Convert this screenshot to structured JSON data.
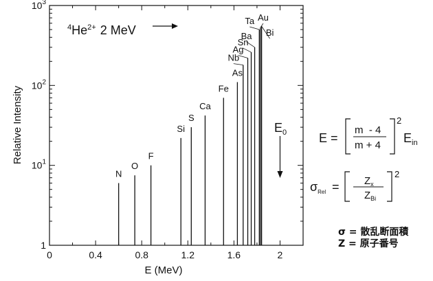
{
  "chart_data": {
    "type": "bar",
    "subtype": "log-y stick spectrum",
    "title_parts": {
      "mass": "4",
      "symbol": "He",
      "charge": "2+",
      "energy": "2 MeV"
    },
    "xlabel": "E (MeV)",
    "ylabel": "Relative Intensity",
    "xlim": [
      0,
      2.2
    ],
    "ylim": [
      1,
      1000
    ],
    "yscale": "log",
    "x_ticks": [
      0,
      0.4,
      0.8,
      1.2,
      1.6,
      2
    ],
    "x_tick_labels": [
      "0",
      "0.4",
      "0.8",
      "1.2",
      "1.6",
      "2"
    ],
    "y_ticks": [
      1,
      10,
      100,
      1000
    ],
    "y_tick_labels": [
      {
        "base": "1",
        "exp": ""
      },
      {
        "base": "10",
        "exp": "1"
      },
      {
        "base": "10",
        "exp": "2"
      },
      {
        "base": "10",
        "exp": "3"
      }
    ],
    "grid": false,
    "series": [
      {
        "name": "N",
        "x": 0.6,
        "y": 6
      },
      {
        "name": "O",
        "x": 0.74,
        "y": 7.5
      },
      {
        "name": "F",
        "x": 0.88,
        "y": 10
      },
      {
        "name": "Si",
        "x": 1.14,
        "y": 22
      },
      {
        "name": "S",
        "x": 1.23,
        "y": 30
      },
      {
        "name": "Ca",
        "x": 1.35,
        "y": 42
      },
      {
        "name": "Fe",
        "x": 1.51,
        "y": 70
      },
      {
        "name": "As",
        "x": 1.63,
        "y": 110
      },
      {
        "name": "Nb",
        "x": 1.68,
        "y": 180
      },
      {
        "name": "Ag",
        "x": 1.72,
        "y": 220
      },
      {
        "name": "Sn",
        "x": 1.75,
        "y": 260
      },
      {
        "name": "Ba",
        "x": 1.78,
        "y": 300
      },
      {
        "name": "Ta",
        "x": 1.82,
        "y": 500
      },
      {
        "name": "Au",
        "x": 1.83,
        "y": 530
      },
      {
        "name": "Bi",
        "x": 1.84,
        "y": 550
      }
    ],
    "annotations": {
      "e0_label": "E",
      "e0_sub": "0",
      "e0_x": 2.0
    }
  },
  "formula_energy": {
    "lhs": "E =",
    "numerator": "m  - 4",
    "denominator": "m + 4",
    "exponent": "2",
    "rhs_base": "E",
    "rhs_sub": "in"
  },
  "formula_sigma": {
    "lhs_base": "σ",
    "lhs_sub": "Rel",
    "equals": "=",
    "num_base": "Z",
    "num_sub": "x",
    "den_base": "Z",
    "den_sub": "Bi",
    "exponent": "2"
  },
  "legend": {
    "sigma_line": "σ = 散乱断面積",
    "z_line": "Z = 原子番号"
  }
}
